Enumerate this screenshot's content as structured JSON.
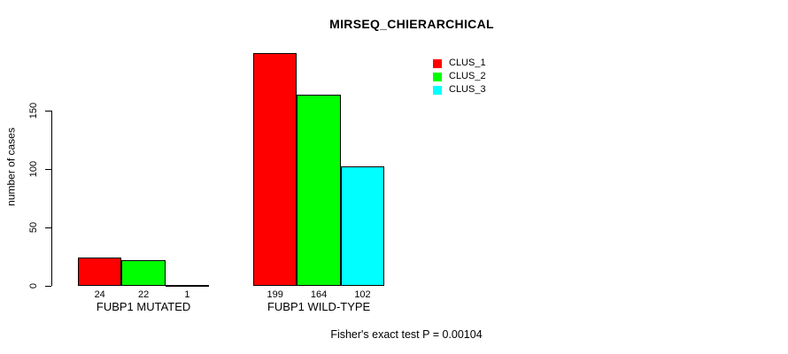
{
  "chart_data": {
    "type": "bar",
    "title": "MIRSEQ_CHIERARCHICAL",
    "ylabel": "number of cases",
    "xlabel": "",
    "categories": [
      "FUBP1 MUTATED",
      "FUBP1 WILD-TYPE"
    ],
    "series": [
      {
        "name": "CLUS_1",
        "color": "#ff0000",
        "values": [
          24,
          199
        ]
      },
      {
        "name": "CLUS_2",
        "color": "#00ff00",
        "values": [
          22,
          164
        ]
      },
      {
        "name": "CLUS_3",
        "color": "#00ffff",
        "values": [
          1,
          102
        ]
      }
    ],
    "bar_value_labels": [
      [
        "24",
        "22",
        "1"
      ],
      [
        "199",
        "164",
        "102"
      ]
    ],
    "yticks": [
      0,
      50,
      100,
      150
    ],
    "ylim": [
      0,
      199
    ],
    "grid": false,
    "bar_border_color": "#000000",
    "legend": {
      "position": "top-right",
      "entries": [
        "CLUS_1",
        "CLUS_2",
        "CLUS_3"
      ],
      "colors": [
        "#ff0000",
        "#00ff00",
        "#00ffff"
      ]
    },
    "footer": "Fisher's exact test P = 0.00104"
  }
}
